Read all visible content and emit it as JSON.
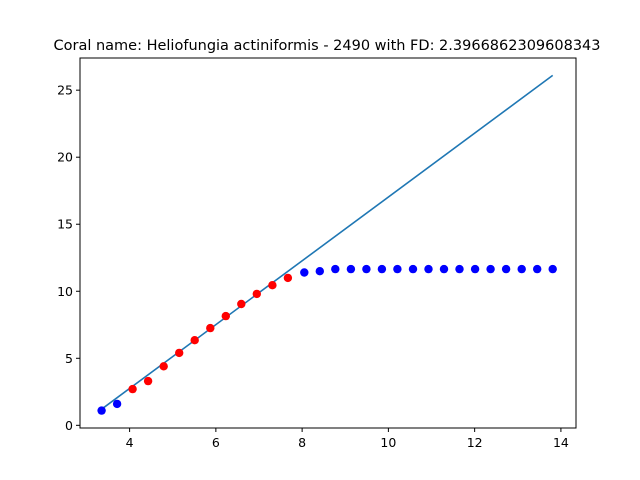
{
  "chart_data": {
    "type": "scatter",
    "title": "Coral name: Heliofungia actiniformis - 2490 with FD: 2.3966862309608343",
    "xlabel": "",
    "ylabel": "",
    "xlim": [
      2.85,
      14.35
    ],
    "ylim": [
      -0.2,
      27.4
    ],
    "x_ticks": [
      4,
      6,
      8,
      10,
      12,
      14
    ],
    "y_ticks": [
      0,
      5,
      10,
      15,
      20,
      25
    ],
    "grid": false,
    "series": [
      {
        "color": "#0000ff",
        "points": [
          [
            3.35,
            1.1
          ],
          [
            3.71,
            1.6
          ],
          [
            8.05,
            11.4
          ],
          [
            8.41,
            11.5
          ],
          [
            8.77,
            11.65
          ],
          [
            9.13,
            11.65
          ],
          [
            9.49,
            11.65
          ],
          [
            9.85,
            11.65
          ],
          [
            10.21,
            11.65
          ],
          [
            10.57,
            11.65
          ],
          [
            10.93,
            11.65
          ],
          [
            11.29,
            11.65
          ],
          [
            11.65,
            11.65
          ],
          [
            12.01,
            11.65
          ],
          [
            12.37,
            11.65
          ],
          [
            12.73,
            11.65
          ],
          [
            13.09,
            11.65
          ],
          [
            13.45,
            11.65
          ],
          [
            13.81,
            11.65
          ]
        ]
      },
      {
        "color": "#ff0000",
        "points": [
          [
            4.07,
            2.7
          ],
          [
            4.43,
            3.3
          ],
          [
            4.79,
            4.4
          ],
          [
            5.15,
            5.4
          ],
          [
            5.51,
            6.35
          ],
          [
            5.87,
            7.25
          ],
          [
            6.23,
            8.15
          ],
          [
            6.59,
            9.05
          ],
          [
            6.95,
            9.8
          ],
          [
            7.31,
            10.45
          ],
          [
            7.67,
            11.0
          ]
        ]
      },
      {
        "type": "line",
        "color": "#1f77b4",
        "points": [
          [
            3.35,
            1.2
          ],
          [
            13.81,
            26.1
          ]
        ]
      }
    ]
  }
}
